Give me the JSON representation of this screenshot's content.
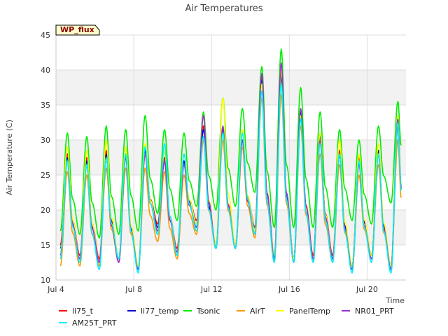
{
  "chart_data": {
    "type": "line",
    "title": "Air Temperatures",
    "xlabel": "Time",
    "ylabel": "Air Temperature (C)",
    "badge": "WP_flux",
    "ylim": [
      10,
      45
    ],
    "yticks": [
      10,
      15,
      20,
      25,
      30,
      35,
      40,
      45
    ],
    "xlim": [
      "2024-07-04",
      "2024-07-22"
    ],
    "xticks": [
      {
        "date": "2024-07-04",
        "label": "Jul 4"
      },
      {
        "date": "2024-07-08",
        "label": "Jul 8"
      },
      {
        "date": "2024-07-12",
        "label": "Jul 12"
      },
      {
        "date": "2024-07-16",
        "label": "Jul 16"
      },
      {
        "date": "2024-07-20",
        "label": "Jul 20"
      }
    ],
    "grid": true,
    "legend_position": "bottom",
    "peak_time": "14:00",
    "dates": [
      "2024-07-04",
      "2024-07-05",
      "2024-07-06",
      "2024-07-07",
      "2024-07-08",
      "2024-07-09",
      "2024-07-10",
      "2024-07-11",
      "2024-07-12",
      "2024-07-13",
      "2024-07-14",
      "2024-07-15",
      "2024-07-16",
      "2024-07-17",
      "2024-07-18",
      "2024-07-19",
      "2024-07-20",
      "2024-07-21"
    ],
    "series": [
      {
        "name": "li75_t",
        "color": "#ff0000",
        "daily_max": [
          28.0,
          27.5,
          28.5,
          28.0,
          28.0,
          27.5,
          27.0,
          32.0,
          31.5,
          30.0,
          39.0,
          39.5,
          34.0,
          30.5,
          28.5,
          27.5,
          28.5,
          32.0
        ],
        "daily_min": [
          15.0,
          13.5,
          13.0,
          13.0,
          11.5,
          18.0,
          14.5,
          18.5,
          15.0,
          15.0,
          17.5,
          13.5,
          13.0,
          13.5,
          13.5,
          12.0,
          13.5,
          12.0
        ]
      },
      {
        "name": "li77_temp",
        "color": "#0000cc",
        "daily_max": [
          27.5,
          27.0,
          28.0,
          28.0,
          28.5,
          27.0,
          27.0,
          31.5,
          31.5,
          30.0,
          38.5,
          39.0,
          34.0,
          30.5,
          28.0,
          27.0,
          28.5,
          32.5
        ],
        "daily_min": [
          14.5,
          13.0,
          12.5,
          13.0,
          11.5,
          17.5,
          14.0,
          18.0,
          14.5,
          14.5,
          17.0,
          13.0,
          13.0,
          13.0,
          13.0,
          12.0,
          13.5,
          12.0
        ]
      },
      {
        "name": "Tsonic",
        "color": "#00ee00",
        "daily_max": [
          31.0,
          30.5,
          32.0,
          31.5,
          33.5,
          31.5,
          31.0,
          34.0,
          36.0,
          34.5,
          40.5,
          43.0,
          37.5,
          34.0,
          31.5,
          30.0,
          32.0,
          35.5
        ],
        "daily_min": [
          17.0,
          16.5,
          16.0,
          16.5,
          17.0,
          19.5,
          18.5,
          20.5,
          20.0,
          20.5,
          22.5,
          17.5,
          17.5,
          17.5,
          17.5,
          18.5,
          18.0,
          21.0
        ]
      },
      {
        "name": "AirT",
        "color": "#ff9900",
        "daily_max": [
          25.5,
          25.0,
          26.0,
          26.0,
          26.0,
          25.5,
          25.0,
          30.0,
          30.0,
          29.0,
          36.0,
          36.5,
          32.0,
          28.0,
          26.5,
          25.0,
          26.5,
          30.0
        ],
        "daily_min": [
          12.0,
          12.0,
          12.0,
          12.5,
          11.5,
          15.5,
          13.0,
          16.5,
          14.5,
          14.5,
          16.0,
          12.5,
          12.5,
          12.5,
          12.5,
          11.5,
          13.0,
          11.5
        ]
      },
      {
        "name": "PanelTemp",
        "color": "#ffff00",
        "daily_max": [
          29.0,
          28.5,
          30.0,
          29.0,
          29.5,
          28.5,
          28.0,
          33.5,
          36.0,
          31.5,
          38.0,
          40.0,
          33.5,
          31.0,
          30.0,
          28.0,
          29.5,
          33.5
        ],
        "daily_min": [
          14.0,
          13.0,
          12.5,
          13.0,
          12.0,
          17.0,
          14.0,
          18.0,
          15.0,
          15.0,
          17.0,
          13.5,
          13.0,
          13.0,
          13.0,
          12.0,
          13.5,
          12.0
        ]
      },
      {
        "name": "NR01_PRT",
        "color": "#9933cc",
        "daily_max": [
          27.0,
          26.5,
          27.5,
          27.5,
          28.0,
          27.0,
          26.5,
          33.5,
          32.0,
          30.0,
          39.5,
          41.0,
          34.5,
          30.0,
          28.0,
          26.5,
          28.0,
          33.0
        ],
        "daily_min": [
          13.5,
          13.0,
          12.5,
          12.5,
          11.5,
          17.0,
          14.0,
          17.5,
          14.5,
          14.5,
          16.5,
          13.0,
          12.5,
          13.0,
          13.0,
          11.5,
          13.0,
          11.5
        ]
      },
      {
        "name": "AM25T_PRT",
        "color": "#00eeff",
        "daily_max": [
          27.0,
          26.5,
          27.5,
          28.0,
          29.0,
          29.5,
          28.0,
          30.5,
          31.0,
          31.0,
          37.0,
          38.0,
          33.0,
          29.5,
          28.0,
          27.0,
          28.0,
          32.5
        ],
        "daily_min": [
          13.0,
          12.5,
          11.5,
          13.0,
          11.0,
          16.5,
          13.5,
          17.0,
          14.5,
          14.5,
          16.5,
          12.5,
          12.5,
          12.5,
          12.5,
          11.0,
          12.5,
          11.0
        ]
      }
    ]
  }
}
